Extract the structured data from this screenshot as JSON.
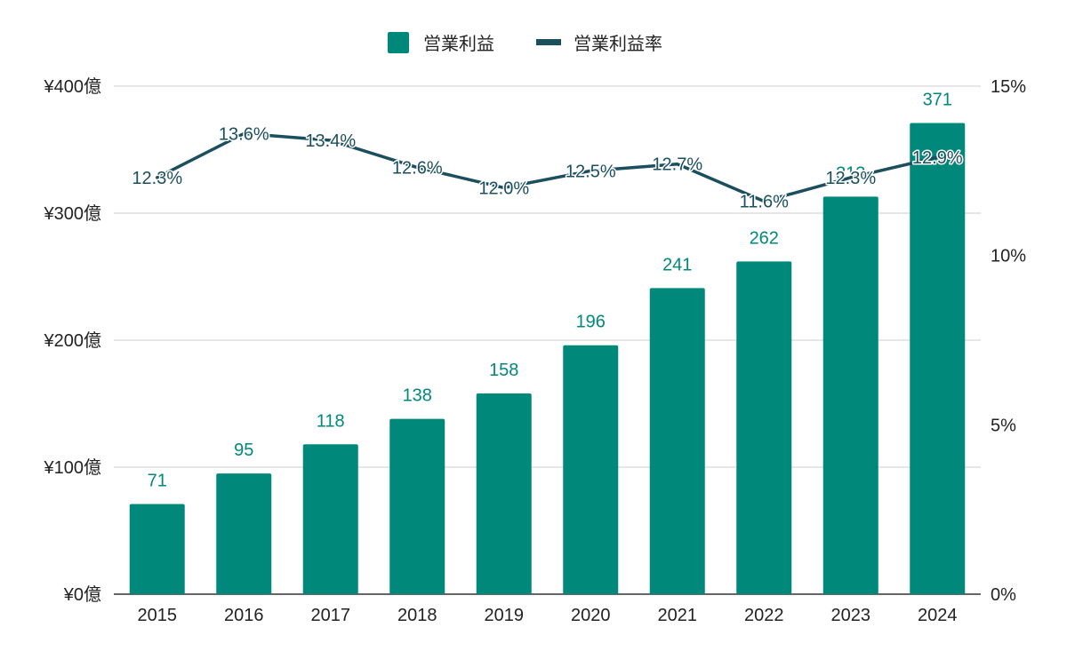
{
  "chart_data": {
    "type": "bar",
    "categories": [
      "2015",
      "2016",
      "2017",
      "2018",
      "2019",
      "2020",
      "2021",
      "2022",
      "2023",
      "2024"
    ],
    "series": [
      {
        "name": "営業利益",
        "type": "bar",
        "axis": "left",
        "color": "#00897b",
        "values": [
          71,
          95,
          118,
          138,
          158,
          196,
          241,
          262,
          313,
          371
        ],
        "labels": [
          "71",
          "95",
          "118",
          "138",
          "158",
          "196",
          "241",
          "262",
          "313",
          "371"
        ]
      },
      {
        "name": "営業利益率",
        "type": "line",
        "axis": "right",
        "color": "#1b4f5e",
        "values": [
          12.3,
          13.6,
          13.4,
          12.6,
          12.0,
          12.5,
          12.7,
          11.6,
          12.3,
          12.9
        ],
        "labels": [
          "12.3%",
          "13.6%",
          "13.4%",
          "12.6%",
          "12.0%",
          "12.5%",
          "12.7%",
          "11.6%",
          "12.3%",
          "12.9%"
        ]
      }
    ],
    "y_left": {
      "min": 0,
      "max": 400,
      "ticks": [
        0,
        100,
        200,
        300,
        400
      ],
      "tick_labels": [
        "¥0億",
        "¥100億",
        "¥200億",
        "¥300億",
        "¥400億"
      ]
    },
    "y_right": {
      "min": 0,
      "max": 15,
      "ticks": [
        0,
        5,
        10,
        15
      ],
      "tick_labels": [
        "0%",
        "5%",
        "10%",
        "15%"
      ]
    },
    "legend": {
      "position": "top",
      "items": [
        "営業利益",
        "営業利益率"
      ]
    },
    "grid": true,
    "title": "",
    "xlabel": "",
    "ylabel": ""
  }
}
